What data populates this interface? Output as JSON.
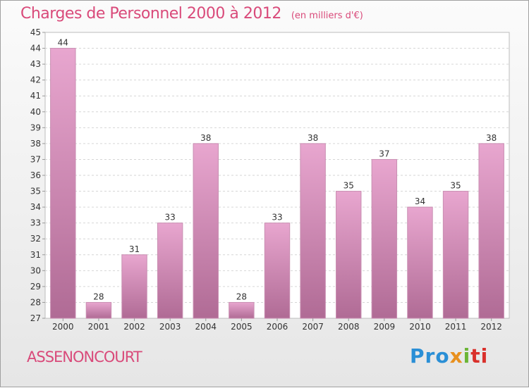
{
  "chart_data": {
    "type": "bar",
    "title": "Charges de Personnel 2000 à 2012",
    "subtitle": "(en milliers d'€)",
    "categories": [
      "2000",
      "2001",
      "2002",
      "2003",
      "2004",
      "2005",
      "2006",
      "2007",
      "2008",
      "2009",
      "2010",
      "2011",
      "2012"
    ],
    "values": [
      44,
      28,
      31,
      33,
      38,
      28,
      33,
      38,
      35,
      37,
      34,
      35,
      38
    ],
    "ylim": [
      27,
      45
    ],
    "yticks": [
      27,
      28,
      29,
      30,
      31,
      32,
      33,
      34,
      35,
      36,
      37,
      38,
      39,
      40,
      41,
      42,
      43,
      44,
      45
    ],
    "grid": true,
    "legend": "none",
    "colors": {
      "bar_top": "#e8a6cf",
      "bar_bottom": "#b06b95",
      "title": "#d94a7a"
    }
  },
  "footer": {
    "commune": "ASSENONCOURT",
    "logo_parts": [
      "Pro",
      "x",
      "i",
      "ti"
    ]
  }
}
